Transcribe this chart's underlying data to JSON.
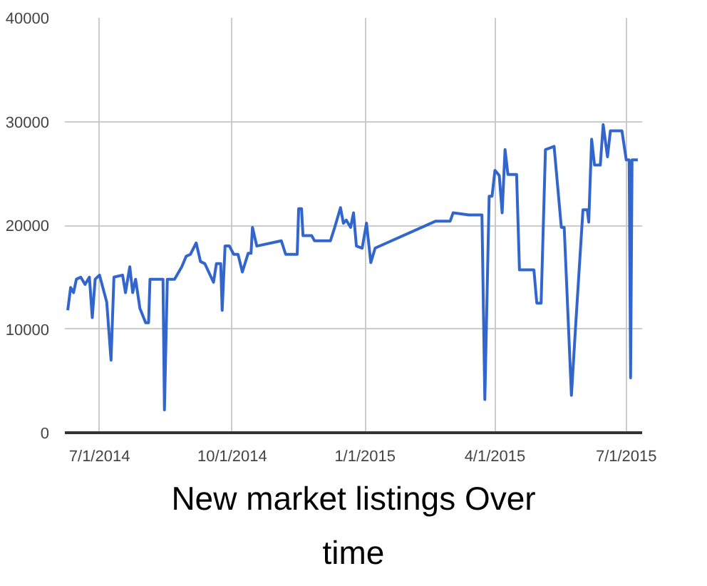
{
  "chart_data": {
    "type": "line",
    "title": "New market listings Over time",
    "x": [
      "2014-06-09",
      "2014-06-11",
      "2014-06-13",
      "2014-06-15",
      "2014-06-18",
      "2014-06-21",
      "2014-06-24",
      "2014-06-26",
      "2014-06-28",
      "2014-07-01",
      "2014-07-06",
      "2014-07-09",
      "2014-07-11",
      "2014-07-17",
      "2014-07-19",
      "2014-07-22",
      "2014-07-24",
      "2014-07-26",
      "2014-07-29",
      "2014-08-02",
      "2014-08-04",
      "2014-08-05",
      "2014-08-14",
      "2014-08-15",
      "2014-08-17",
      "2014-08-22",
      "2014-08-27",
      "2014-08-30",
      "2014-09-02",
      "2014-09-06",
      "2014-09-09",
      "2014-09-12",
      "2014-09-18",
      "2014-09-20",
      "2014-09-23",
      "2014-09-24",
      "2014-09-26",
      "2014-09-29",
      "2014-10-02",
      "2014-10-05",
      "2014-10-08",
      "2014-10-12",
      "2014-10-14",
      "2014-10-15",
      "2014-10-18",
      "2014-11-04",
      "2014-11-07",
      "2014-11-15",
      "2014-11-16",
      "2014-11-18",
      "2014-11-19",
      "2014-11-25",
      "2014-11-27",
      "2014-12-08",
      "2014-12-11",
      "2014-12-15",
      "2014-12-17",
      "2014-12-19",
      "2014-12-22",
      "2014-12-24",
      "2014-12-26",
      "2014-12-30",
      "2015-01-02",
      "2015-01-05",
      "2015-01-08",
      "2015-02-19",
      "2015-03-01",
      "2015-03-03",
      "2015-03-14",
      "2015-03-23",
      "2015-03-25",
      "2015-03-28",
      "2015-03-30",
      "2015-04-01",
      "2015-04-04",
      "2015-04-06",
      "2015-04-08",
      "2015-04-10",
      "2015-04-16",
      "2015-04-18",
      "2015-04-28",
      "2015-04-30",
      "2015-05-03",
      "2015-05-06",
      "2015-05-12",
      "2015-05-17",
      "2015-05-19",
      "2015-05-24",
      "2015-05-27",
      "2015-06-01",
      "2015-06-04",
      "2015-06-05",
      "2015-06-07",
      "2015-06-09",
      "2015-06-13",
      "2015-06-15",
      "2015-06-18",
      "2015-06-20",
      "2015-06-28",
      "2015-07-01",
      "2015-07-03",
      "2015-07-04",
      "2015-07-05",
      "2015-07-09"
    ],
    "series": [
      {
        "color": "#3366cc",
        "values": [
          11800,
          14000,
          13500,
          14800,
          15000,
          14300,
          15000,
          11100,
          14800,
          15200,
          12600,
          7000,
          15000,
          15200,
          13500,
          16000,
          13500,
          14800,
          12000,
          10600,
          10600,
          14800,
          14800,
          2200,
          14800,
          14800,
          16000,
          17000,
          17200,
          18300,
          16500,
          16300,
          14500,
          16300,
          16300,
          11800,
          18000,
          18000,
          17200,
          17200,
          15500,
          17300,
          17300,
          19800,
          18000,
          18500,
          17200,
          17200,
          21600,
          21600,
          19000,
          19000,
          18500,
          18500,
          19800,
          21700,
          20200,
          20500,
          19800,
          21200,
          18000,
          17800,
          20200,
          16400,
          17800,
          20400,
          20400,
          21200,
          21000,
          21000,
          3200,
          22800,
          22800,
          25300,
          24800,
          21200,
          27300,
          24900,
          24900,
          15700,
          15700,
          12500,
          12500,
          27300,
          27600,
          19800,
          19800,
          3600,
          10500,
          21500,
          21500,
          20300,
          28300,
          25800,
          25800,
          29700,
          26600,
          29100,
          29100,
          26300,
          26300,
          5300,
          26300,
          26300
        ]
      }
    ],
    "xlim": [
      "2014-06-07",
      "2015-07-12"
    ],
    "xticks": [
      {
        "value": "2014-07-01",
        "label": "7/1/2014"
      },
      {
        "value": "2014-10-01",
        "label": "10/1/2014"
      },
      {
        "value": "2015-01-01",
        "label": "1/1/2015"
      },
      {
        "value": "2015-04-01",
        "label": "4/1/2015"
      },
      {
        "value": "2015-07-01",
        "label": "7/1/2015"
      }
    ],
    "ylim": [
      0,
      40000
    ],
    "yticks": [
      0,
      10000,
      20000,
      30000,
      40000
    ],
    "grid": true,
    "marker": "none",
    "line_style": "solid"
  }
}
